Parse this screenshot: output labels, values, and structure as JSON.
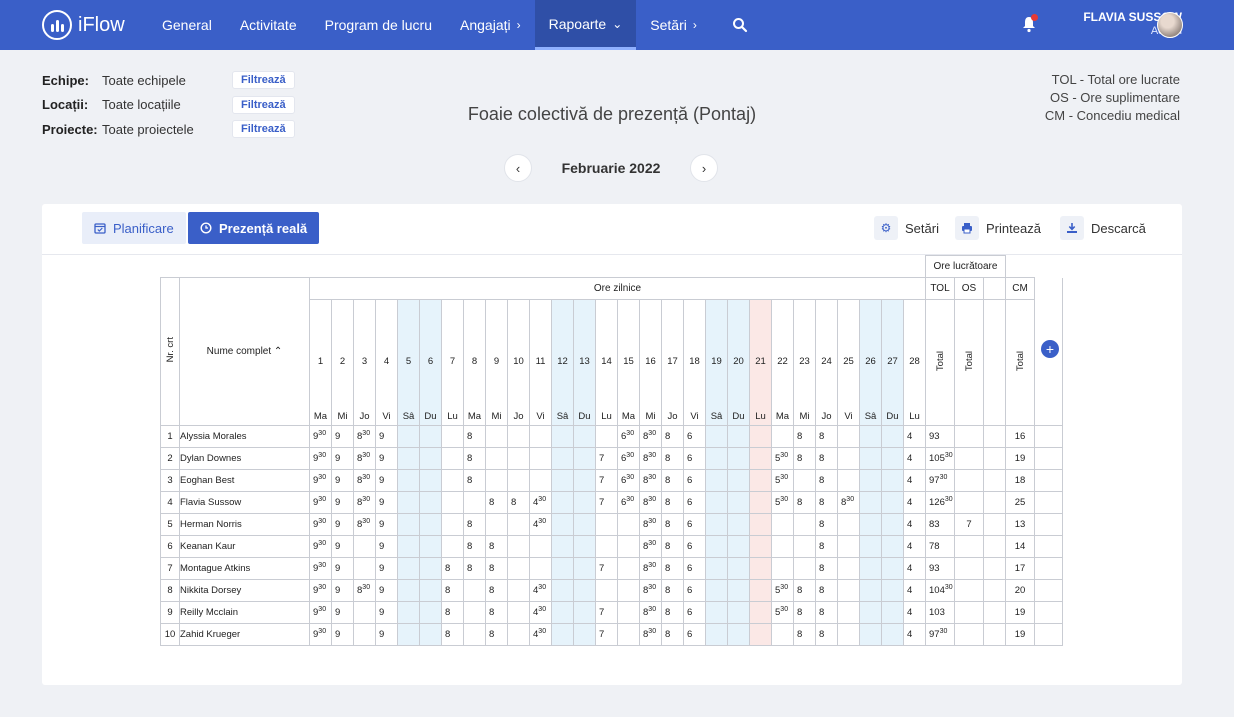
{
  "brand": {
    "name": "iFlow"
  },
  "nav": [
    {
      "label": "General",
      "chevron": false,
      "active": false
    },
    {
      "label": "Activitate",
      "chevron": false,
      "active": false
    },
    {
      "label": "Program de lucru",
      "chevron": false,
      "active": false
    },
    {
      "label": "Angajați",
      "chevron": "›",
      "active": false
    },
    {
      "label": "Rapoarte",
      "chevron": "⌄",
      "active": true
    },
    {
      "label": "Setări",
      "chevron": "›",
      "active": false
    }
  ],
  "user": {
    "name": "FLAVIA SUSSOW",
    "role": "Admin"
  },
  "filters": [
    {
      "label": "Echipe:",
      "value": "Toate echipele",
      "button": "Filtrează"
    },
    {
      "label": "Locații:",
      "value": "Toate locațiile",
      "button": "Filtrează"
    },
    {
      "label": "Proiecte:",
      "value": "Toate proiectele",
      "button": "Filtrează"
    }
  ],
  "title": "Foaie colectivă de prezență (Pontaj)",
  "legend": [
    "TOL - Total ore lucrate",
    "OS - Ore suplimentare",
    "CM - Concediu medical"
  ],
  "month": "Februarie 2022",
  "tabs": {
    "planning": "Planificare",
    "real": "Prezență reală"
  },
  "actions": {
    "settings": "Setări",
    "print": "Printează",
    "download": "Descarcă"
  },
  "table": {
    "headers": {
      "nr": "Nr. crt",
      "name": "Nume complet",
      "daily": "Ore zilnice",
      "worked": "Ore lucrătoare",
      "tol": "TOL",
      "os": "OS",
      "cm": "CM",
      "total": "Total"
    },
    "days": [
      {
        "n": "1",
        "wd": "Ma",
        "t": ""
      },
      {
        "n": "2",
        "wd": "Mi",
        "t": ""
      },
      {
        "n": "3",
        "wd": "Jo",
        "t": ""
      },
      {
        "n": "4",
        "wd": "Vi",
        "t": ""
      },
      {
        "n": "5",
        "wd": "Sâ",
        "t": "we"
      },
      {
        "n": "6",
        "wd": "Du",
        "t": "we"
      },
      {
        "n": "7",
        "wd": "Lu",
        "t": ""
      },
      {
        "n": "8",
        "wd": "Ma",
        "t": ""
      },
      {
        "n": "9",
        "wd": "Mi",
        "t": ""
      },
      {
        "n": "10",
        "wd": "Jo",
        "t": ""
      },
      {
        "n": "11",
        "wd": "Vi",
        "t": ""
      },
      {
        "n": "12",
        "wd": "Sâ",
        "t": "we"
      },
      {
        "n": "13",
        "wd": "Du",
        "t": "we"
      },
      {
        "n": "14",
        "wd": "Lu",
        "t": ""
      },
      {
        "n": "15",
        "wd": "Ma",
        "t": ""
      },
      {
        "n": "16",
        "wd": "Mi",
        "t": ""
      },
      {
        "n": "17",
        "wd": "Jo",
        "t": ""
      },
      {
        "n": "18",
        "wd": "Vi",
        "t": ""
      },
      {
        "n": "19",
        "wd": "Sâ",
        "t": "we"
      },
      {
        "n": "20",
        "wd": "Du",
        "t": "we"
      },
      {
        "n": "21",
        "wd": "Lu",
        "t": "hol"
      },
      {
        "n": "22",
        "wd": "Ma",
        "t": ""
      },
      {
        "n": "23",
        "wd": "Mi",
        "t": ""
      },
      {
        "n": "24",
        "wd": "Jo",
        "t": ""
      },
      {
        "n": "25",
        "wd": "Vi",
        "t": ""
      },
      {
        "n": "26",
        "wd": "Sâ",
        "t": "we"
      },
      {
        "n": "27",
        "wd": "Du",
        "t": "we"
      },
      {
        "n": "28",
        "wd": "Lu",
        "t": ""
      }
    ],
    "rows": [
      {
        "nr": "1",
        "name": "Alyssia Morales",
        "d": [
          "9|30",
          "9",
          "8|30",
          "9",
          "",
          "",
          "",
          "8",
          "",
          "",
          "",
          "",
          "",
          "",
          "6|30",
          "8|30",
          "8",
          "6",
          "",
          "",
          "",
          "",
          "8",
          "8",
          "",
          "",
          "",
          "4"
        ],
        "tol": "93",
        "os": "",
        "cm": "16"
      },
      {
        "nr": "2",
        "name": "Dylan Downes",
        "d": [
          "9|30",
          "9",
          "8|30",
          "9",
          "",
          "",
          "",
          "8",
          "",
          "",
          "",
          "",
          "",
          "7",
          "6|30",
          "8|30",
          "8",
          "6",
          "",
          "",
          "",
          "5|30",
          "8",
          "8",
          "",
          "",
          "",
          "4"
        ],
        "tol": "105|30",
        "os": "",
        "cm": "19"
      },
      {
        "nr": "3",
        "name": "Eoghan Best",
        "d": [
          "9|30",
          "9",
          "8|30",
          "9",
          "",
          "",
          "",
          "8",
          "",
          "",
          "",
          "",
          "",
          "7",
          "6|30",
          "8|30",
          "8",
          "6",
          "",
          "",
          "",
          "5|30",
          "",
          "8",
          "",
          "",
          "",
          "4"
        ],
        "tol": "97|30",
        "os": "",
        "cm": "18"
      },
      {
        "nr": "4",
        "name": "Flavia Sussow",
        "d": [
          "9|30",
          "9",
          "8|30",
          "9",
          "",
          "",
          "",
          "",
          "8",
          "8",
          "4|30",
          "",
          "",
          "7",
          "6|30",
          "8|30",
          "8",
          "6",
          "",
          "",
          "",
          "5|30",
          "8",
          "8",
          "8|30",
          "",
          "",
          "4"
        ],
        "tol": "126|30",
        "os": "",
        "cm": "25"
      },
      {
        "nr": "5",
        "name": "Herman Norris",
        "d": [
          "9|30",
          "9",
          "8|30",
          "9",
          "",
          "",
          "",
          "8",
          "",
          "",
          "4|30",
          "",
          "",
          "",
          "",
          "8|30",
          "8",
          "6",
          "",
          "",
          "",
          "",
          "",
          "8",
          "",
          "",
          "",
          "4"
        ],
        "tol": "83",
        "os": "7",
        "cm": "13"
      },
      {
        "nr": "6",
        "name": "Keanan Kaur",
        "d": [
          "9|30",
          "9",
          "",
          "9",
          "",
          "",
          "",
          "8",
          "8",
          "",
          "",
          "",
          "",
          "",
          "",
          "8|30",
          "8",
          "6",
          "",
          "",
          "",
          "",
          "",
          "8",
          "",
          "",
          "",
          "4"
        ],
        "tol": "78",
        "os": "",
        "cm": "14"
      },
      {
        "nr": "7",
        "name": "Montague Atkins",
        "d": [
          "9|30",
          "9",
          "",
          "9",
          "",
          "",
          "8",
          "8",
          "8",
          "",
          "",
          "",
          "",
          "7",
          "",
          "8|30",
          "8",
          "6",
          "",
          "",
          "",
          "",
          "",
          "8",
          "",
          "",
          "",
          "4"
        ],
        "tol": "93",
        "os": "",
        "cm": "17"
      },
      {
        "nr": "8",
        "name": "Nikkita Dorsey",
        "d": [
          "9|30",
          "9",
          "8|30",
          "9",
          "",
          "",
          "8",
          "",
          "8",
          "",
          "4|30",
          "",
          "",
          "",
          "",
          "8|30",
          "8",
          "6",
          "",
          "",
          "",
          "5|30",
          "8",
          "8",
          "",
          "",
          "",
          "4"
        ],
        "tol": "104|30",
        "os": "",
        "cm": "20"
      },
      {
        "nr": "9",
        "name": "Reilly Mcclain",
        "d": [
          "9|30",
          "9",
          "",
          "9",
          "",
          "",
          "8",
          "",
          "8",
          "",
          "4|30",
          "",
          "",
          "7",
          "",
          "8|30",
          "8",
          "6",
          "",
          "",
          "",
          "5|30",
          "8",
          "8",
          "",
          "",
          "",
          "4"
        ],
        "tol": "103",
        "os": "",
        "cm": "19"
      },
      {
        "nr": "10",
        "name": "Zahid Krueger",
        "d": [
          "9|30",
          "9",
          "",
          "9",
          "",
          "",
          "8",
          "",
          "8",
          "",
          "4|30",
          "",
          "",
          "7",
          "",
          "8|30",
          "8",
          "6",
          "",
          "",
          "",
          "",
          "8",
          "8",
          "",
          "",
          "",
          "4"
        ],
        "tol": "97|30",
        "os": "",
        "cm": "19"
      }
    ]
  }
}
